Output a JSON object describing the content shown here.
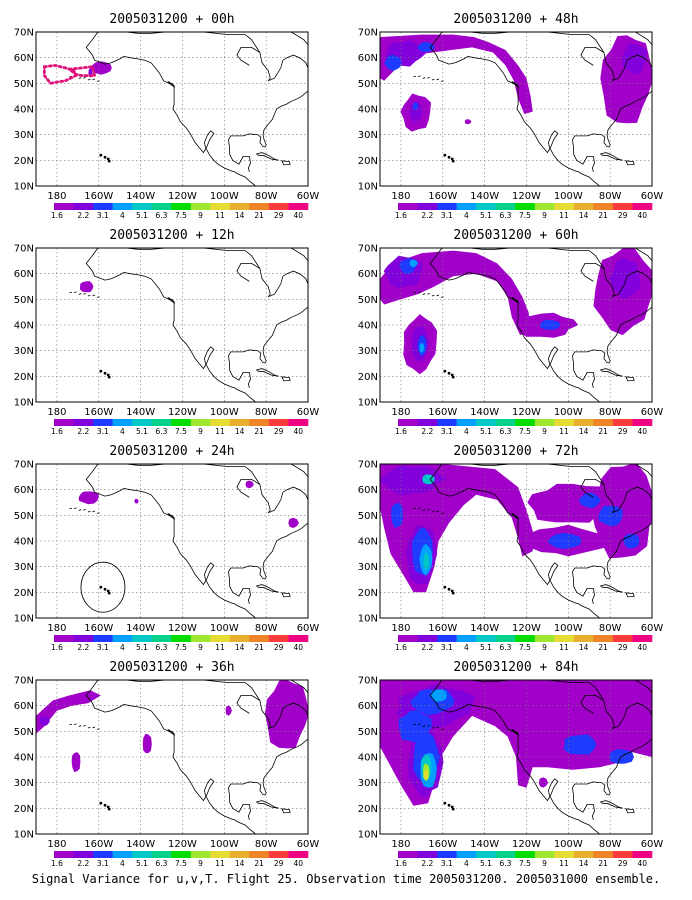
{
  "caption": "Signal Variance for u,v,T. Flight 25. Observation time 2005031200. 2005031000 ensemble.",
  "axes": {
    "lat_ticks": [
      "70N",
      "60N",
      "50N",
      "40N",
      "30N",
      "20N",
      "10N"
    ],
    "lon_ticks": [
      "180",
      "160W",
      "140W",
      "120W",
      "100W",
      "80W",
      "60W"
    ]
  },
  "colorbar": {
    "levels": [
      "1.6",
      "2.2",
      "3.1",
      "4",
      "5.1",
      "6.3",
      "7.5",
      "9",
      "11",
      "14",
      "21",
      "29",
      "40"
    ],
    "colors": [
      "#a000c8",
      "#8200dc",
      "#1e3cff",
      "#00a0ff",
      "#00c8c8",
      "#00d28c",
      "#00dc00",
      "#a0e632",
      "#e6dc32",
      "#e6af2d",
      "#f08228",
      "#fa3c3c",
      "#f00082"
    ]
  },
  "panels": [
    {
      "title": "2005031200 + 00h"
    },
    {
      "title": "2005031200 + 48h"
    },
    {
      "title": "2005031200 + 12h"
    },
    {
      "title": "2005031200 + 60h"
    },
    {
      "title": "2005031200 + 24h"
    },
    {
      "title": "2005031200 + 72h"
    },
    {
      "title": "2005031200 + 36h"
    },
    {
      "title": "2005031200 + 84h"
    }
  ]
}
